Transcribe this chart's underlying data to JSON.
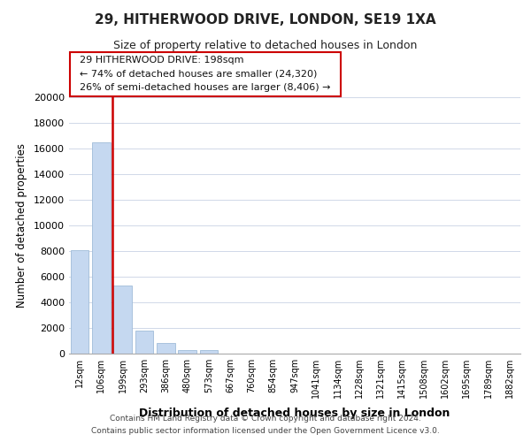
{
  "title": "29, HITHERWOOD DRIVE, LONDON, SE19 1XA",
  "subtitle": "Size of property relative to detached houses in London",
  "xlabel": "Distribution of detached houses by size in London",
  "ylabel": "Number of detached properties",
  "bar_labels": [
    "12sqm",
    "106sqm",
    "199sqm",
    "293sqm",
    "386sqm",
    "480sqm",
    "573sqm",
    "667sqm",
    "760sqm",
    "854sqm",
    "947sqm",
    "1041sqm",
    "1134sqm",
    "1228sqm",
    "1321sqm",
    "1415sqm",
    "1508sqm",
    "1602sqm",
    "1695sqm",
    "1789sqm",
    "1882sqm"
  ],
  "bar_values": [
    8100,
    16500,
    5300,
    1800,
    800,
    300,
    300,
    0,
    0,
    0,
    0,
    0,
    0,
    0,
    0,
    0,
    0,
    0,
    0,
    0,
    0
  ],
  "bar_color": "#c5d8f0",
  "bar_edge_color": "#a0bcd8",
  "property_line_color": "#cc0000",
  "property_line_index": 1.5,
  "ylim": [
    0,
    20000
  ],
  "yticks": [
    0,
    2000,
    4000,
    6000,
    8000,
    10000,
    12000,
    14000,
    16000,
    18000,
    20000
  ],
  "annotation_title": "29 HITHERWOOD DRIVE: 198sqm",
  "annotation_line1": "← 74% of detached houses are smaller (24,320)",
  "annotation_line2": "26% of semi-detached houses are larger (8,406) →",
  "annotation_box_color": "#ffffff",
  "annotation_box_edge": "#cc0000",
  "footer_line1": "Contains HM Land Registry data © Crown copyright and database right 2024.",
  "footer_line2": "Contains public sector information licensed under the Open Government Licence v3.0.",
  "background_color": "#ffffff",
  "grid_color": "#d0d8e8"
}
